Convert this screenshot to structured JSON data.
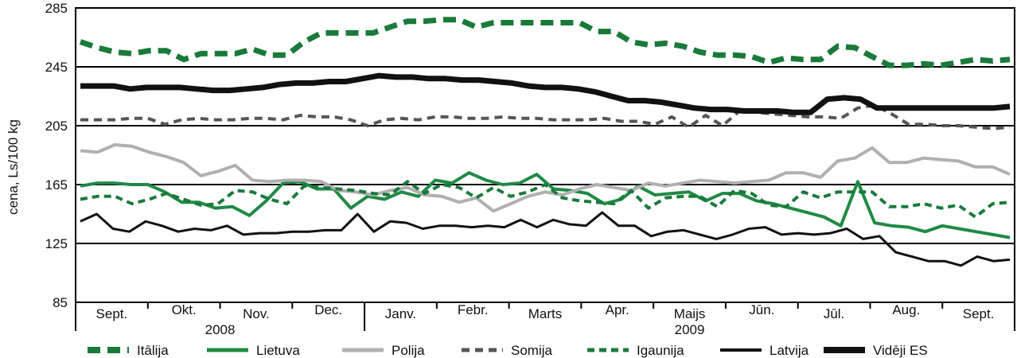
{
  "chart_data": {
    "type": "line",
    "title": "",
    "ylabel": "cena, Ls/100 kg",
    "xlabel": "",
    "ylim": [
      85,
      285
    ],
    "yticks": [
      85,
      125,
      165,
      205,
      245,
      285
    ],
    "grid": "horizontal",
    "legend_position": "bottom",
    "months": [
      "Sept.",
      "Okt.",
      "Nov.",
      "Dec.",
      "Janv.",
      "Febr.",
      "Marts",
      "Apr.",
      "Maijs",
      "Jūn.",
      "Jūl.",
      "Aug.",
      "Sept."
    ],
    "years": [
      {
        "label": "2008",
        "months": 4
      },
      {
        "label": "2009",
        "months": 9
      }
    ],
    "weeks_per_month": 4,
    "series": [
      {
        "name": "Itālija",
        "color": "#1a7a3a",
        "style": "long-dash",
        "width": 7,
        "values": [
          262,
          258,
          255,
          254,
          256,
          256,
          250,
          254,
          254,
          254,
          257,
          253,
          253,
          262,
          268,
          268,
          268,
          268,
          272,
          276,
          276,
          277,
          277,
          272,
          275,
          275,
          275,
          275,
          275,
          275,
          269,
          269,
          262,
          260,
          261,
          259,
          255,
          253,
          253,
          252,
          248,
          251,
          250,
          250,
          259,
          258,
          252,
          246,
          246,
          247,
          246,
          248,
          250,
          249,
          250
        ]
      },
      {
        "name": "Lietuva",
        "color": "#1f8a45",
        "style": "solid",
        "width": 4,
        "values": [
          164,
          166,
          166,
          165,
          165,
          160,
          153,
          153,
          149,
          150,
          144,
          154,
          166,
          167,
          162,
          162,
          149,
          157,
          155,
          160,
          157,
          168,
          166,
          173,
          168,
          165,
          166,
          172,
          162,
          161,
          159,
          152,
          155,
          164,
          158,
          159,
          160,
          154,
          159,
          159,
          154,
          152,
          149,
          146,
          143,
          137,
          167,
          139,
          137,
          136,
          133,
          137,
          135,
          133,
          131,
          129
        ]
      },
      {
        "name": "Polija",
        "color": "#b0b0b0",
        "style": "solid",
        "width": 4,
        "values": [
          188,
          187,
          192,
          191,
          187,
          184,
          180,
          171,
          174,
          178,
          168,
          167,
          168,
          168,
          167,
          161,
          160,
          158,
          161,
          163,
          158,
          157,
          153,
          156,
          147,
          152,
          157,
          160,
          158,
          162,
          165,
          163,
          161,
          166,
          164,
          166,
          168,
          167,
          166,
          167,
          168,
          173,
          173,
          170,
          181,
          183,
          190,
          180,
          180,
          183,
          182,
          181,
          177,
          177,
          172
        ]
      },
      {
        "name": "Somija",
        "color": "#555555",
        "style": "dash",
        "width": 4,
        "values": [
          209,
          209,
          209,
          210,
          210,
          206,
          209,
          210,
          209,
          209,
          210,
          210,
          209,
          212,
          211,
          211,
          209,
          205,
          209,
          210,
          209,
          211,
          211,
          210,
          210,
          211,
          210,
          210,
          209,
          209,
          209,
          210,
          208,
          208,
          206,
          211,
          204,
          212,
          205,
          215,
          214,
          213,
          212,
          211,
          211,
          210,
          217,
          219,
          213,
          206,
          206,
          205,
          205,
          204,
          203,
          204
        ]
      },
      {
        "name": "Igaunija",
        "color": "#1a7a3a",
        "style": "short-dash",
        "width": 4,
        "values": [
          155,
          157,
          157,
          152,
          155,
          159,
          155,
          151,
          152,
          161,
          160,
          155,
          152,
          164,
          163,
          162,
          161,
          159,
          158,
          167,
          159,
          165,
          163,
          156,
          163,
          157,
          160,
          165,
          156,
          154,
          153,
          152,
          161,
          149,
          156,
          157,
          157,
          150,
          161,
          159,
          151,
          150,
          160,
          156,
          160,
          160,
          160,
          150,
          150,
          152,
          149,
          151,
          143,
          152,
          153
        ]
      },
      {
        "name": "Latvija",
        "color": "#111111",
        "style": "solid",
        "width": 3,
        "values": [
          140,
          145,
          135,
          133,
          140,
          137,
          133,
          135,
          134,
          137,
          131,
          132,
          132,
          133,
          133,
          134,
          134,
          145,
          133,
          140,
          139,
          135,
          137,
          137,
          136,
          137,
          136,
          141,
          136,
          141,
          138,
          137,
          146,
          137,
          137,
          130,
          133,
          134,
          131,
          128,
          131,
          135,
          136,
          131,
          132,
          131,
          132,
          135,
          128,
          130,
          119,
          116,
          113,
          113,
          110,
          116,
          113,
          114
        ]
      },
      {
        "name": "Vidēji ES",
        "color": "#111111",
        "style": "solid",
        "width": 7,
        "values": [
          232,
          232,
          232,
          230,
          231,
          231,
          231,
          230,
          229,
          229,
          230,
          231,
          233,
          234,
          234,
          235,
          235,
          237,
          239,
          238,
          238,
          237,
          237,
          236,
          236,
          235,
          234,
          232,
          231,
          231,
          230,
          228,
          225,
          222,
          222,
          221,
          219,
          217,
          216,
          216,
          215,
          215,
          215,
          214,
          214,
          223,
          224,
          223,
          217,
          217,
          217,
          217,
          217,
          217,
          217,
          217,
          218
        ]
      }
    ]
  }
}
